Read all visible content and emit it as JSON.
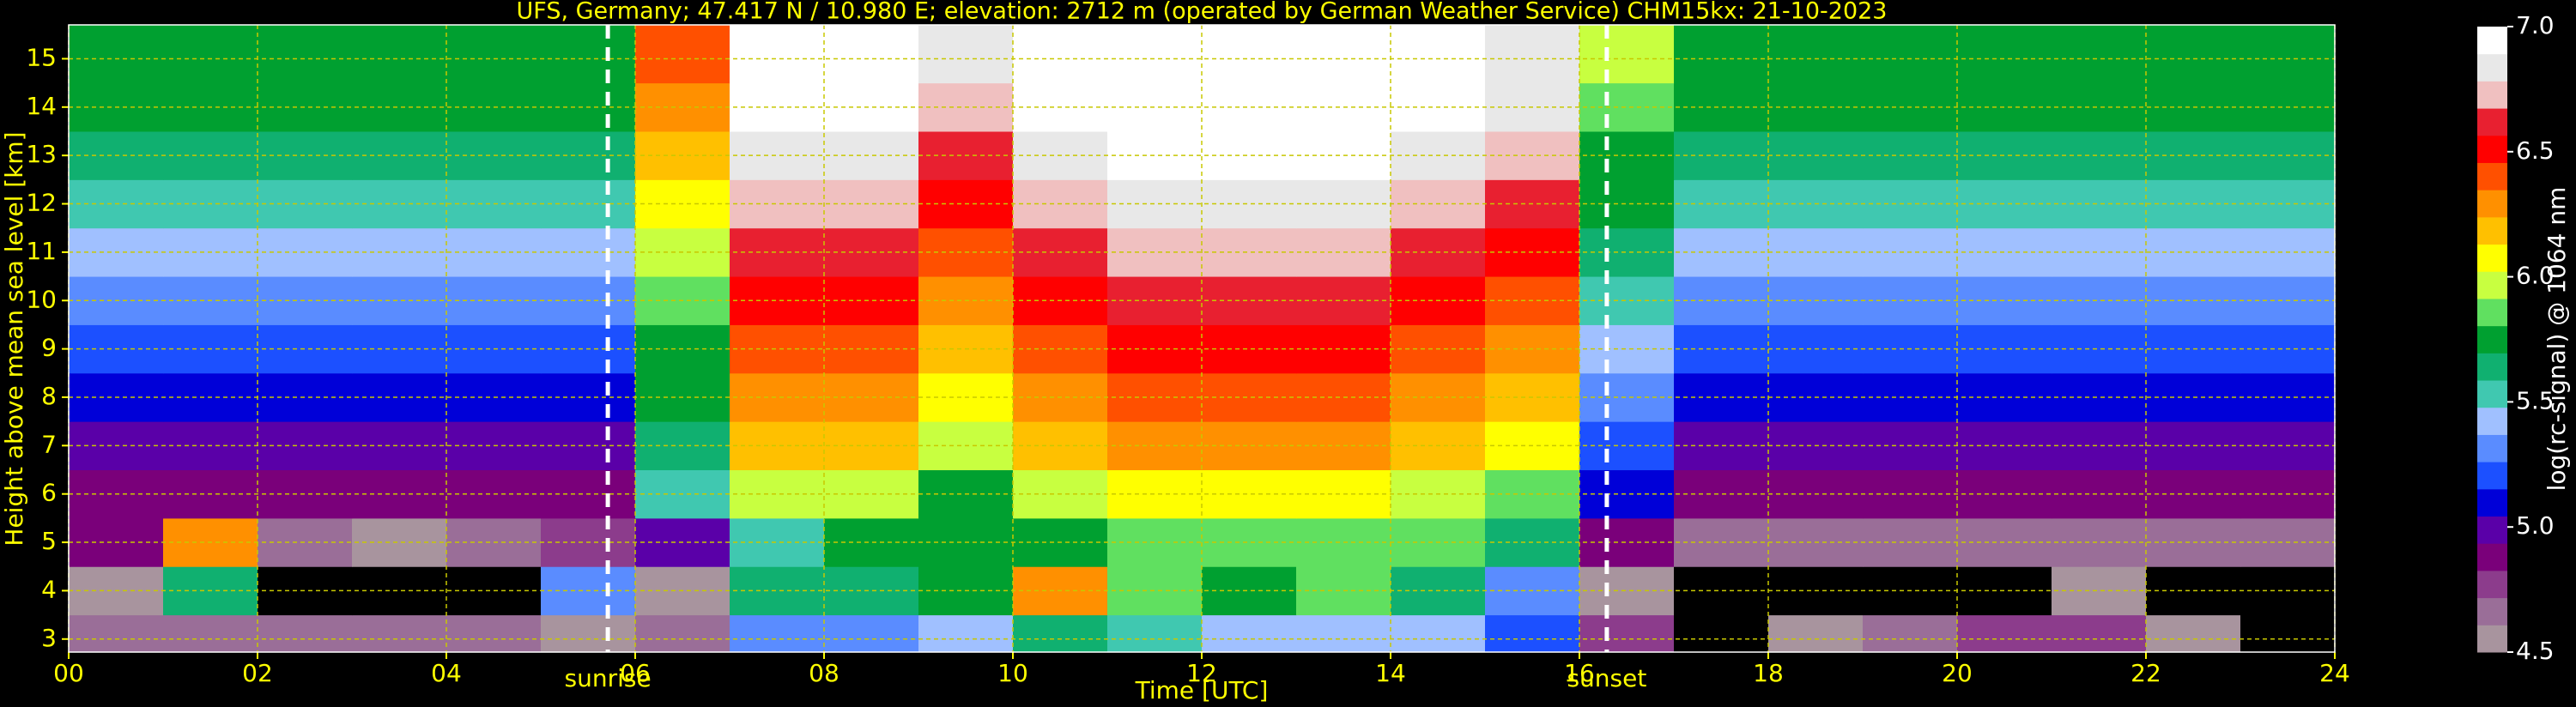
{
  "chart_data": {
    "type": "heatmap",
    "title": "UFS, Germany; 47.417 N / 10.980 E; elevation: 2712 m  (operated by German Weather Service)    CHM15kx: 21-10-2023",
    "x_label": "Time [UTC]",
    "y_label": "Height above mean sea level [km]",
    "colorbar_label": "log(rc-signal) @ 1064 nm",
    "xlim": [
      0,
      24
    ],
    "ylim": [
      2.73,
      15.7
    ],
    "xticks": [
      {
        "value": 0,
        "label": "00"
      },
      {
        "value": 2,
        "label": "02"
      },
      {
        "value": 4,
        "label": "04"
      },
      {
        "value": 6,
        "label": "06"
      },
      {
        "value": 8,
        "label": "08"
      },
      10,
      12,
      14,
      16,
      18,
      20,
      22,
      24
    ],
    "yticks": [
      3,
      4,
      5,
      6,
      7,
      8,
      9,
      10,
      11,
      12,
      13,
      14,
      15
    ],
    "grid": true,
    "grid_color": "#c8c800",
    "clim": [
      4.5,
      7.0
    ],
    "cticks": [
      4.5,
      {
        "value": 5.0,
        "label": "5.0"
      },
      5.5,
      {
        "value": 6.0,
        "label": "6.0"
      },
      6.5,
      {
        "value": 7.0,
        "label": "7.0"
      }
    ],
    "colormap": [
      "#a8949e",
      "#9a6e98",
      "#8c3c8c",
      "#7a007a",
      "#5a00a8",
      "#0000d8",
      "#1c50ff",
      "#5a8cff",
      "#a0c0ff",
      "#40c8b0",
      "#10b070",
      "#00a030",
      "#60e060",
      "#c8ff40",
      "#ffff00",
      "#ffc000",
      "#ff9000",
      "#ff5000",
      "#ff0000",
      "#e82030",
      "#f0c0c0",
      "#e8e8e8",
      "#ffffff"
    ],
    "under_color": "#000000",
    "x_edges": [
      0,
      1,
      2,
      3,
      4,
      5,
      6,
      7,
      8,
      9,
      10,
      11,
      12,
      13,
      14,
      15,
      16,
      17,
      18,
      19,
      20,
      21,
      22,
      23,
      24
    ],
    "y_edges": [
      2.73,
      3.5,
      4.5,
      5.5,
      6.5,
      7.5,
      8.5,
      9.5,
      10.5,
      11.5,
      12.5,
      13.5,
      14.5,
      15.7
    ],
    "z": [
      [
        4.7,
        4.7,
        4.7,
        4.7,
        4.7,
        4.6,
        4.7,
        5.3,
        5.3,
        5.4,
        5.6,
        5.5,
        5.4,
        5.4,
        5.4,
        5.2,
        4.8,
        4.4,
        4.6,
        4.7,
        4.8,
        4.8,
        4.6,
        4.4
      ],
      [
        4.6,
        5.6,
        4.4,
        4.4,
        4.4,
        5.3,
        4.6,
        5.6,
        5.6,
        5.8,
        6.3,
        5.9,
        5.8,
        5.9,
        5.6,
        5.3,
        4.6,
        4.3,
        4.3,
        4.3,
        4.4,
        4.5,
        4.3,
        4.3
      ],
      [
        4.9,
        6.3,
        4.7,
        4.6,
        4.7,
        4.8,
        5.0,
        5.5,
        5.8,
        5.8,
        5.8,
        5.9,
        5.9,
        5.9,
        5.9,
        5.6,
        4.9,
        4.7,
        4.7,
        4.7,
        4.7,
        4.7,
        4.7,
        4.7
      ],
      [
        4.9,
        4.9,
        4.9,
        4.9,
        4.9,
        4.9,
        5.5,
        6.0,
        6.0,
        5.8,
        6.0,
        6.1,
        6.1,
        6.1,
        6.0,
        5.9,
        5.1,
        4.9,
        4.9,
        4.9,
        4.9,
        4.9,
        4.9,
        4.9
      ],
      [
        5.0,
        5.0,
        5.0,
        5.0,
        5.0,
        5.0,
        5.6,
        6.2,
        6.2,
        6.0,
        6.2,
        6.3,
        6.3,
        6.3,
        6.2,
        6.1,
        5.2,
        5.0,
        5.0,
        5.0,
        5.0,
        5.0,
        5.0,
        5.0
      ],
      [
        5.1,
        5.1,
        5.1,
        5.1,
        5.1,
        5.1,
        5.7,
        6.3,
        6.3,
        6.1,
        6.3,
        6.4,
        6.4,
        6.4,
        6.3,
        6.2,
        5.3,
        5.1,
        5.1,
        5.1,
        5.1,
        5.1,
        5.1,
        5.1
      ],
      [
        5.2,
        5.2,
        5.2,
        5.2,
        5.2,
        5.2,
        5.8,
        6.4,
        6.4,
        6.2,
        6.4,
        6.5,
        6.5,
        6.5,
        6.4,
        6.3,
        5.4,
        5.2,
        5.2,
        5.2,
        5.2,
        5.2,
        5.2,
        5.2
      ],
      [
        5.3,
        5.3,
        5.3,
        5.3,
        5.3,
        5.3,
        5.9,
        6.5,
        6.5,
        6.3,
        6.5,
        6.6,
        6.6,
        6.6,
        6.5,
        6.4,
        5.5,
        5.3,
        5.3,
        5.3,
        5.3,
        5.3,
        5.3,
        5.3
      ],
      [
        5.4,
        5.4,
        5.4,
        5.4,
        5.4,
        5.4,
        6.0,
        6.6,
        6.6,
        6.4,
        6.6,
        6.7,
        6.7,
        6.7,
        6.6,
        6.5,
        5.6,
        5.4,
        5.4,
        5.4,
        5.4,
        5.4,
        5.4,
        5.4
      ],
      [
        5.5,
        5.5,
        5.5,
        5.5,
        5.5,
        5.5,
        6.1,
        6.7,
        6.7,
        6.5,
        6.7,
        6.8,
        6.8,
        6.8,
        6.7,
        6.6,
        5.7,
        5.5,
        5.5,
        5.5,
        5.5,
        5.5,
        5.5,
        5.5
      ],
      [
        5.6,
        5.6,
        5.6,
        5.6,
        5.6,
        5.6,
        6.2,
        6.8,
        6.8,
        6.6,
        6.8,
        6.9,
        6.9,
        6.9,
        6.8,
        6.7,
        5.8,
        5.6,
        5.6,
        5.6,
        5.6,
        5.6,
        5.6,
        5.6
      ],
      [
        5.7,
        5.7,
        5.7,
        5.7,
        5.7,
        5.7,
        6.3,
        6.9,
        6.9,
        6.7,
        6.9,
        7.0,
        7.0,
        7.0,
        6.9,
        6.8,
        5.9,
        5.7,
        5.7,
        5.7,
        5.7,
        5.7,
        5.7,
        5.7
      ],
      [
        5.8,
        5.8,
        5.8,
        5.8,
        5.8,
        5.8,
        6.4,
        6.9,
        6.9,
        6.8,
        6.9,
        7.0,
        7.0,
        7.0,
        6.9,
        6.8,
        6.0,
        5.8,
        5.8,
        5.8,
        5.8,
        5.8,
        5.8,
        5.8
      ]
    ],
    "annotations": [
      {
        "text": "sunrise",
        "x": 5.71
      },
      {
        "text": "sunset",
        "x": 16.29
      }
    ]
  }
}
